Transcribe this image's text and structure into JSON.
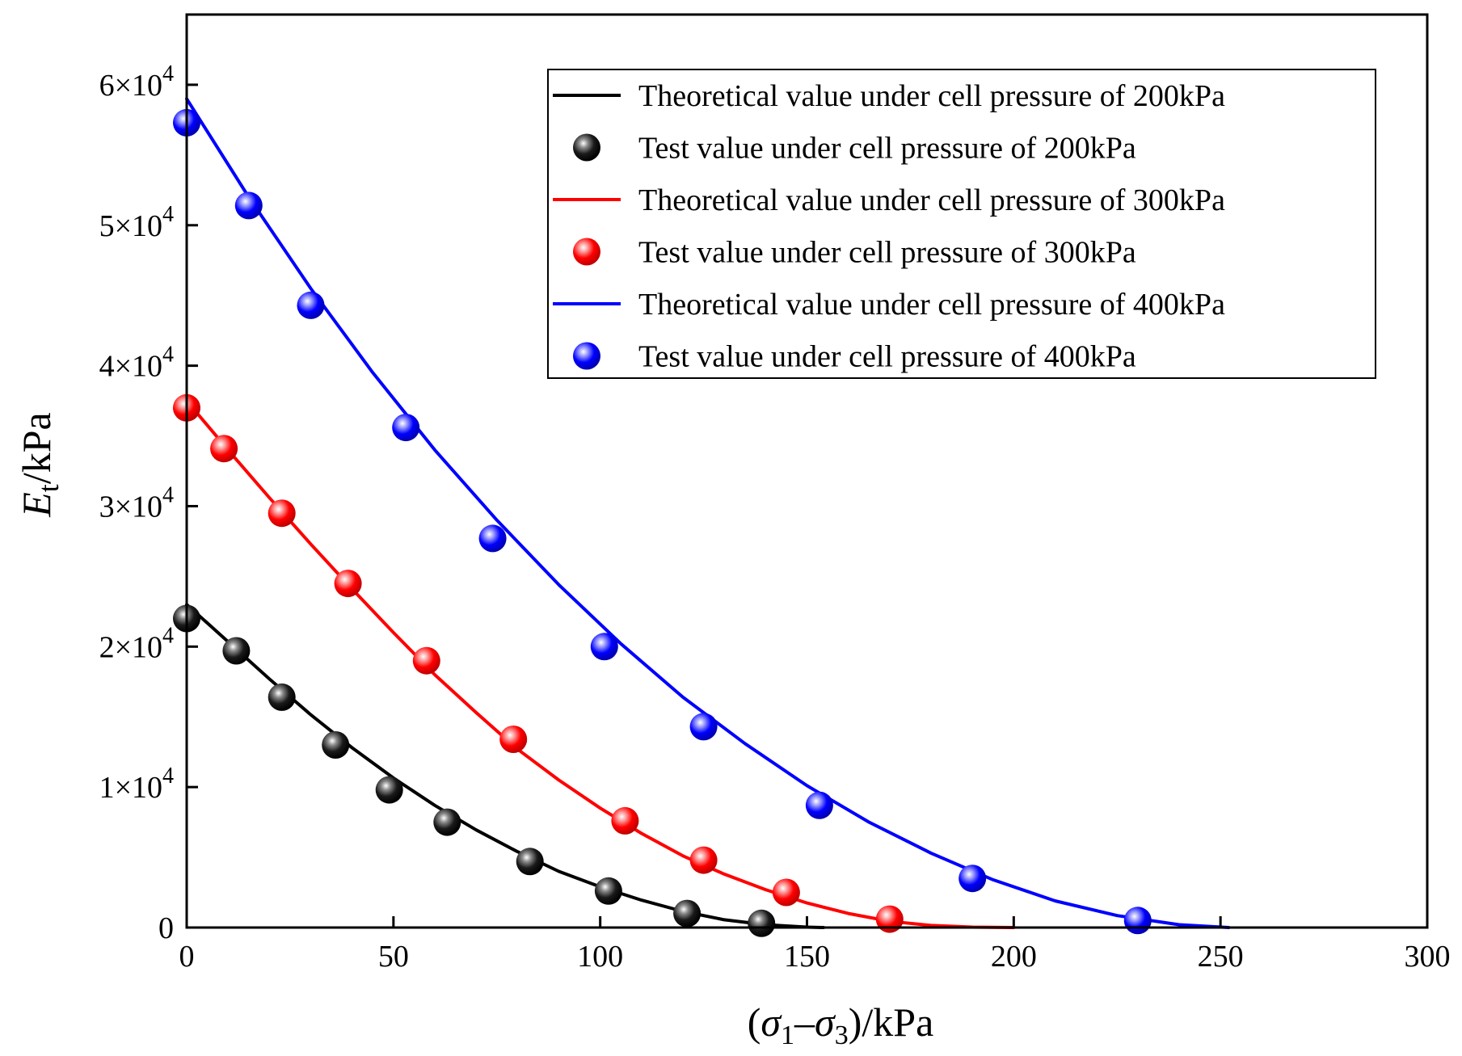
{
  "chart_data": {
    "type": "line+scatter",
    "xlabel": {
      "open": "(",
      "sym1": "σ",
      "sub1": "1",
      "dash": "–",
      "sym2": "σ",
      "sub2": "3",
      "tail": ")/kPa"
    },
    "ylabel": {
      "sym": "E",
      "sub": "t",
      "tail": "/kPa"
    },
    "xlim": [
      0,
      300
    ],
    "ylim": [
      0,
      65000
    ],
    "x_ticks": [
      {
        "value": 0,
        "label": "0"
      },
      {
        "value": 50,
        "label": "50"
      },
      {
        "value": 100,
        "label": "100"
      },
      {
        "value": 150,
        "label": "150"
      },
      {
        "value": 200,
        "label": "200"
      },
      {
        "value": 250,
        "label": "250"
      },
      {
        "value": 300,
        "label": "300"
      }
    ],
    "y_ticks": [
      {
        "value": 0,
        "mant": "0",
        "exp": ""
      },
      {
        "value": 10000,
        "mant": "1×10",
        "exp": "4"
      },
      {
        "value": 20000,
        "mant": "2×10",
        "exp": "4"
      },
      {
        "value": 30000,
        "mant": "3×10",
        "exp": "4"
      },
      {
        "value": 40000,
        "mant": "4×10",
        "exp": "4"
      },
      {
        "value": 50000,
        "mant": "5×10",
        "exp": "4"
      },
      {
        "value": 60000,
        "mant": "6×10",
        "exp": "4"
      }
    ],
    "legend_position": "top-right",
    "series": [
      {
        "name": "Theoretical value under cell pressure of 200kPa",
        "kind": "line",
        "color": "#000000",
        "x": [
          0,
          10,
          20,
          30,
          40,
          50,
          60,
          70,
          80,
          90,
          100,
          110,
          120,
          130,
          140,
          150,
          154
        ],
        "y": [
          23000,
          20350,
          17700,
          15150,
          12800,
          10650,
          8700,
          6950,
          5400,
          4000,
          2900,
          1950,
          1150,
          550,
          200,
          30,
          0
        ]
      },
      {
        "name": "Test value under cell pressure of 200kPa",
        "kind": "scatter",
        "color": "#000000",
        "x": [
          0,
          12,
          23,
          36,
          49,
          63,
          83,
          102,
          121,
          139
        ],
        "y": [
          22000,
          19700,
          16400,
          13000,
          9800,
          7500,
          4700,
          2600,
          1000,
          300
        ]
      },
      {
        "name": "Theoretical value under cell pressure of 300kPa",
        "kind": "line",
        "color": "#ff0000",
        "x": [
          0,
          10,
          20,
          30,
          40,
          50,
          60,
          70,
          80,
          90,
          100,
          110,
          120,
          130,
          140,
          150,
          160,
          170,
          180,
          190,
          200
        ],
        "y": [
          37500,
          34000,
          30600,
          27300,
          24100,
          21000,
          18000,
          15300,
          12700,
          10500,
          8500,
          6700,
          5100,
          3800,
          2700,
          1750,
          1000,
          450,
          150,
          30,
          0
        ]
      },
      {
        "name": "Test value under cell pressure of 300kPa",
        "kind": "scatter",
        "color": "#ff0000",
        "x": [
          0,
          9,
          23,
          39,
          58,
          79,
          106,
          125,
          145,
          170
        ],
        "y": [
          37000,
          34100,
          29500,
          24500,
          19000,
          13400,
          7600,
          4800,
          2500,
          600
        ]
      },
      {
        "name": "Theoretical value under cell pressure of 400kPa",
        "kind": "line",
        "color": "#0000ff",
        "x": [
          0,
          15,
          30,
          45,
          60,
          75,
          90,
          105,
          120,
          135,
          150,
          165,
          180,
          195,
          210,
          225,
          240,
          252
        ],
        "y": [
          59000,
          52000,
          45500,
          39500,
          34000,
          29000,
          24400,
          20200,
          16400,
          13100,
          10100,
          7500,
          5300,
          3400,
          1900,
          850,
          200,
          0
        ]
      },
      {
        "name": "Test value under cell pressure of 400kPa",
        "kind": "scatter",
        "color": "#0000ff",
        "x": [
          0,
          15,
          30,
          53,
          74,
          101,
          125,
          153,
          190,
          230
        ],
        "y": [
          57300,
          51400,
          44300,
          35600,
          27700,
          20000,
          14300,
          8700,
          3500,
          500
        ]
      }
    ]
  }
}
